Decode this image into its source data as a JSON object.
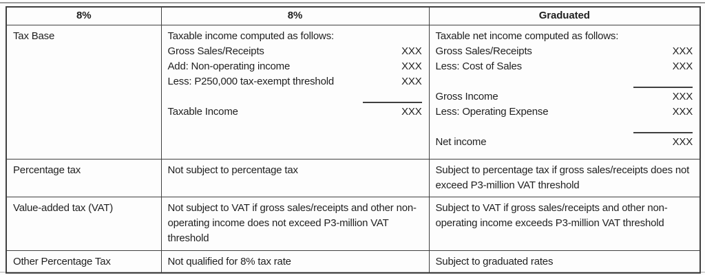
{
  "colors": {
    "background": "#fdfdfd",
    "text": "#1f1f1f",
    "border": "#3f3f3f"
  },
  "table": {
    "headers": [
      "8%",
      "8%",
      "Graduated"
    ],
    "rows": [
      {
        "label": "Tax Base",
        "col8": {
          "lines": [
            {
              "label": "Taxable income computed as follows:",
              "value": ""
            },
            {
              "label": "Gross Sales/Receipts",
              "value": "XXX"
            },
            {
              "label": "Add: Non-operating income",
              "value": "XXX"
            },
            {
              "label": "Less: P250,000 tax-exempt threshold",
              "value": "XXX"
            },
            {
              "label": "Taxable Income",
              "value": "XXX"
            }
          ]
        },
        "graduated": {
          "lines": [
            {
              "label": "Taxable net income computed as follows:",
              "value": ""
            },
            {
              "label": "Gross Sales/Receipts",
              "value": "XXX"
            },
            {
              "label": "Less: Cost of Sales",
              "value": "XXX"
            },
            {
              "label": "Gross Income",
              "value": "XXX"
            },
            {
              "label": "Less: Operating Expense",
              "value": "XXX"
            },
            {
              "label": "Net income",
              "value": "XXX"
            }
          ]
        }
      },
      {
        "label": "Percentage tax",
        "col8": "Not subject to percentage tax",
        "graduated": "Subject to percentage tax if gross sales/receipts does not exceed P3-million VAT threshold"
      },
      {
        "label": "Value-added tax (VAT)",
        "col8": "Not subject to VAT if gross sales/receipts and other non-operating income does not exceed P3-million VAT threshold",
        "graduated": "Subject to VAT if gross sales/receipts and other non-operating income exceeds P3-million VAT threshold"
      },
      {
        "label": "Other Percentage Tax",
        "col8": "Not qualified for 8% tax rate",
        "graduated": "Subject to graduated rates"
      }
    ]
  }
}
